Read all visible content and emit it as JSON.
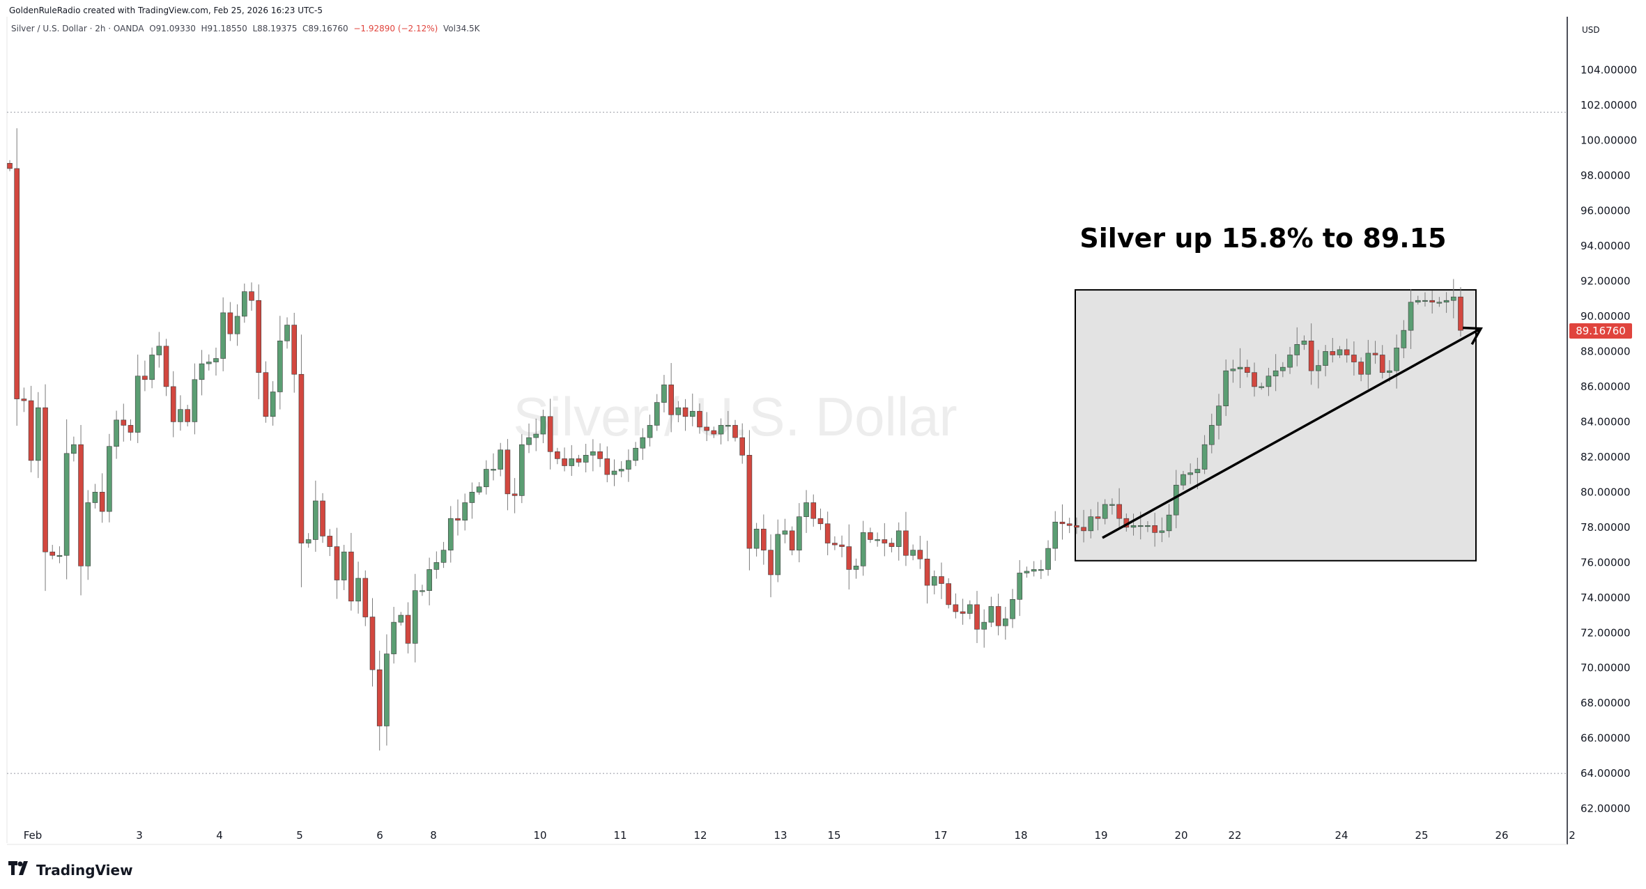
{
  "header": {
    "credit": "GoldenRuleRadio created with TradingView.com, Feb 25, 2026 16:23 UTC-5",
    "symbol": "Silver / U.S. Dollar · 2h · OANDA",
    "open": "O91.09330",
    "high": "H91.18550",
    "low": "L88.19375",
    "close": "C89.16760",
    "change": "−1.92890 (−2.12%)",
    "volume": "Vol34.5K"
  },
  "watermark": "Silver / U.S. Dollar",
  "annotation": {
    "text": "Silver up 15.8% to 89.15",
    "box_start": "18",
    "box_end": "25",
    "box_low": 76.1,
    "box_high": 91.5,
    "arrow_from": [
      19,
      77.4
    ],
    "arrow_to": [
      25.6,
      89.3
    ]
  },
  "brand": {
    "name": "TradingView",
    "logo_icon": "tradingview-logo-icon"
  },
  "colors": {
    "up": "#5b9e73",
    "down": "#d2473f",
    "annotation_box": "#e3e3e3",
    "price_label": "#e0443d"
  },
  "chart_data": {
    "type": "candlestick",
    "title": "Silver / U.S. Dollar",
    "currency": "USD",
    "y_ticks": [
      "62.00000",
      "64.00000",
      "66.00000",
      "68.00000",
      "70.00000",
      "72.00000",
      "74.00000",
      "76.00000",
      "78.00000",
      "80.00000",
      "82.00000",
      "84.00000",
      "86.00000",
      "88.00000",
      "90.00000",
      "92.00000",
      "94.00000",
      "96.00000",
      "98.00000",
      "100.00000",
      "102.00000",
      "104.00000"
    ],
    "ylim": [
      60.6,
      106.4
    ],
    "x_ticks": [
      "Feb",
      "3",
      "4",
      "5",
      "6",
      "8",
      "10",
      "11",
      "12",
      "13",
      "15",
      "17",
      "18",
      "19",
      "20",
      "22",
      "24",
      "25",
      "26",
      "2"
    ],
    "last_price": "89.16760",
    "dotted_levels": [
      101.6,
      64.0
    ],
    "closes": [
      98.4,
      85.3,
      85.2,
      81.8,
      84.8,
      76.6,
      76.4,
      76.4,
      82.2,
      82.7,
      75.8,
      79.4,
      80.0,
      78.9,
      82.6,
      84.1,
      83.8,
      83.4,
      86.6,
      86.4,
      87.8,
      88.3,
      86.0,
      84.0,
      84.7,
      84.0,
      86.4,
      87.3,
      87.4,
      87.6,
      90.2,
      89.0,
      90.0,
      91.4,
      90.9,
      86.8,
      84.3,
      85.7,
      88.6,
      89.5,
      86.7,
      77.1,
      77.3,
      79.5,
      77.5,
      76.9,
      75.0,
      76.6,
      73.8,
      75.1,
      72.9,
      69.9,
      66.7,
      70.8,
      72.6,
      73.0,
      71.4,
      74.4,
      74.4,
      75.6,
      76.0,
      76.7,
      78.5,
      78.4,
      79.4,
      80.0,
      80.3,
      81.3,
      81.3,
      82.4,
      79.9,
      79.8,
      82.7,
      83.1,
      83.3,
      84.3,
      82.3,
      81.9,
      81.5,
      81.9,
      81.7,
      82.1,
      82.3,
      81.9,
      81.0,
      81.2,
      81.3,
      81.8,
      82.5,
      83.1,
      83.8,
      85.1,
      86.1,
      84.4,
      84.8,
      84.3,
      84.6,
      83.7,
      83.5,
      83.3,
      83.8,
      83.8,
      83.1,
      82.1,
      76.8,
      77.9,
      76.7,
      75.3,
      77.6,
      77.8,
      76.7,
      78.6,
      79.4,
      78.5,
      78.2,
      77.1,
      77.0,
      76.9,
      75.6,
      75.8,
      77.7,
      77.3,
      77.3,
      77.1,
      76.9,
      77.8,
      76.4,
      76.7,
      76.2,
      74.7,
      75.2,
      74.8,
      73.6,
      73.2,
      73.1,
      73.6,
      72.2,
      72.6,
      73.5,
      72.4,
      72.8,
      73.9,
      75.4,
      75.5,
      75.6,
      75.6,
      76.8,
      78.3,
      78.2,
      78.1,
      78.0,
      77.8,
      78.6,
      78.5,
      79.3,
      79.3,
      78.5,
      78.0,
      78.1,
      78.1,
      78.1,
      77.7,
      77.8,
      78.7,
      80.4,
      81.0,
      81.1,
      81.3,
      82.7,
      83.8,
      84.9,
      86.9,
      87.0,
      87.1,
      86.8,
      86.0,
      86.0,
      86.6,
      86.9,
      87.1,
      87.8,
      88.4,
      88.6,
      86.9,
      87.2,
      88.0,
      87.8,
      88.1,
      87.8,
      87.4,
      86.7,
      87.9,
      87.8,
      86.8,
      86.9,
      88.2,
      89.2,
      90.8,
      90.9,
      90.9,
      90.8,
      90.8,
      90.9,
      91.1,
      89.2
    ]
  }
}
